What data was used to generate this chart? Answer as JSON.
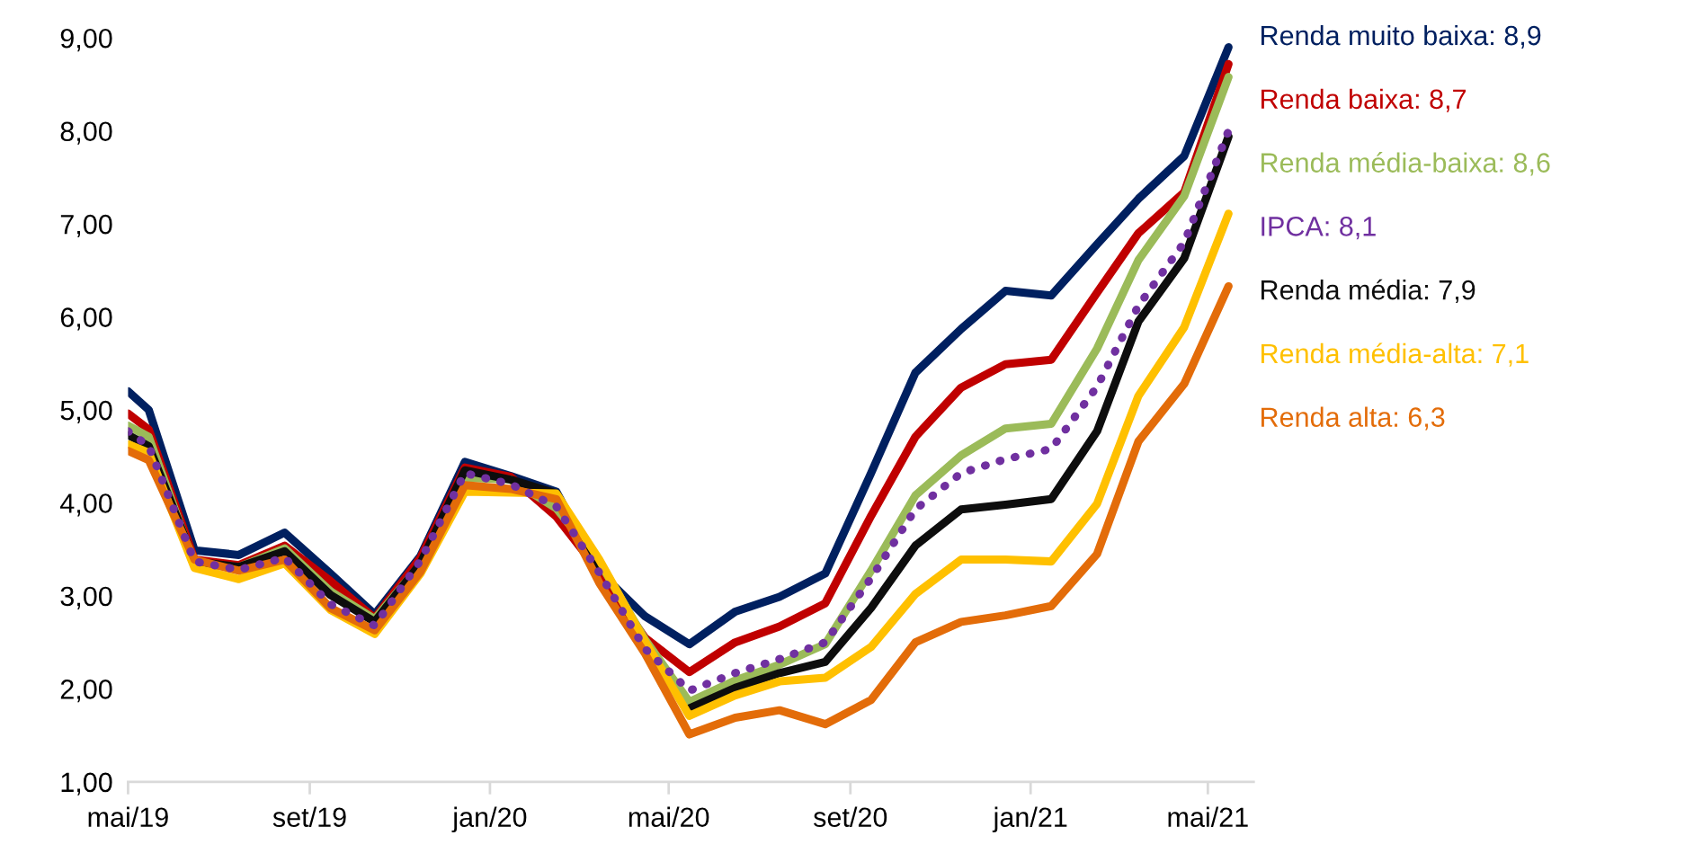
{
  "chart_data": {
    "type": "line",
    "x": [
      "2019-05-01",
      "2019-05-15",
      "2019-06-15",
      "2019-07-15",
      "2019-08-15",
      "2019-09-15",
      "2019-10-15",
      "2019-11-15",
      "2019-12-15",
      "2020-01-15",
      "2020-02-15",
      "2020-03-15",
      "2020-04-15",
      "2020-05-15",
      "2020-06-15",
      "2020-07-15",
      "2020-08-15",
      "2020-09-15",
      "2020-10-15",
      "2020-11-15",
      "2020-12-15",
      "2021-01-15",
      "2021-02-15",
      "2021-03-15",
      "2021-04-15",
      "2021-05-15"
    ],
    "series": [
      {
        "name": "Renda muito baixa: 8,9",
        "color": "#002060",
        "values": [
          5.2,
          5.0,
          3.49,
          3.44,
          3.68,
          3.24,
          2.8,
          3.43,
          4.44,
          4.29,
          4.12,
          3.26,
          2.78,
          2.48,
          2.83,
          2.99,
          3.24,
          4.32,
          5.4,
          5.87,
          6.28,
          6.23,
          6.78,
          7.27,
          7.73,
          8.9
        ]
      },
      {
        "name": "Renda baixa: 8,7",
        "color": "#c00000",
        "values": [
          4.96,
          4.79,
          3.39,
          3.33,
          3.54,
          3.16,
          2.76,
          3.41,
          4.38,
          4.28,
          3.85,
          3.26,
          2.55,
          2.18,
          2.5,
          2.67,
          2.92,
          3.86,
          4.71,
          5.24,
          5.49,
          5.54,
          6.26,
          6.9,
          7.34,
          8.72
        ]
      },
      {
        "name": "Renda média-baixa: 8,6",
        "color": "#9bbb59",
        "values": [
          4.83,
          4.71,
          3.34,
          3.31,
          3.51,
          3.05,
          2.75,
          3.34,
          4.27,
          4.25,
          3.94,
          3.37,
          2.53,
          1.86,
          2.09,
          2.26,
          2.48,
          3.27,
          4.08,
          4.51,
          4.8,
          4.85,
          5.66,
          6.61,
          7.3,
          8.58
        ]
      },
      {
        "name": "IPCA: 8,1",
        "color": "#7030a0",
        "line_style": "dotted",
        "values": [
          4.77,
          4.61,
          3.37,
          3.28,
          3.41,
          2.91,
          2.68,
          3.38,
          4.32,
          4.2,
          3.96,
          3.25,
          2.43,
          1.98,
          2.17,
          2.32,
          2.5,
          3.19,
          3.93,
          4.32,
          4.47,
          4.58,
          5.25,
          6.12,
          6.8,
          8.0
        ]
      },
      {
        "name": "Renda média: 7,9",
        "color": "#0d0d0d",
        "values": [
          4.73,
          4.61,
          3.37,
          3.31,
          3.48,
          3.01,
          2.72,
          3.35,
          4.35,
          4.25,
          4.1,
          3.26,
          null,
          1.79,
          2.01,
          2.17,
          2.29,
          2.87,
          3.54,
          3.93,
          3.98,
          4.04,
          4.77,
          5.95,
          6.63,
          7.94
        ]
      },
      {
        "name": "Renda média-alta: 7,1",
        "color": "#ffc000",
        "values": [
          4.63,
          4.54,
          3.3,
          3.18,
          3.35,
          2.85,
          2.59,
          3.24,
          4.12,
          4.11,
          4.1,
          3.39,
          2.51,
          1.71,
          1.93,
          2.08,
          2.12,
          2.45,
          3.02,
          3.39,
          3.39,
          3.37,
          3.99,
          5.15,
          5.89,
          7.11
        ]
      },
      {
        "name": "Renda alta: 6,3",
        "color": "#e36c09",
        "values": [
          4.56,
          4.46,
          3.39,
          3.27,
          3.39,
          2.87,
          2.63,
          3.26,
          4.19,
          4.15,
          4.04,
          3.14,
          2.38,
          1.51,
          1.69,
          1.77,
          1.62,
          1.88,
          2.5,
          2.72,
          2.79,
          2.89,
          3.45,
          4.66,
          5.28,
          6.33
        ]
      }
    ],
    "xlim": [
      "2019-05-01",
      "2021-06-01"
    ],
    "xticks": [
      {
        "value": "2019-05-01",
        "label": "mai/19"
      },
      {
        "value": "2019-09-01",
        "label": "set/19"
      },
      {
        "value": "2020-01-01",
        "label": "jan/20"
      },
      {
        "value": "2020-05-01",
        "label": "mai/20"
      },
      {
        "value": "2020-09-01",
        "label": "set/20"
      },
      {
        "value": "2021-01-01",
        "label": "jan/21"
      },
      {
        "value": "2021-05-01",
        "label": "mai/21"
      }
    ],
    "ylim": [
      1,
      9
    ],
    "yticks": [
      {
        "value": 1,
        "label": "1,00"
      },
      {
        "value": 2,
        "label": "2,00"
      },
      {
        "value": 3,
        "label": "3,00"
      },
      {
        "value": 4,
        "label": "4,00"
      },
      {
        "value": 5,
        "label": "5,00"
      },
      {
        "value": 6,
        "label": "6,00"
      },
      {
        "value": 7,
        "label": "7,00"
      },
      {
        "value": 8,
        "label": "8,00"
      },
      {
        "value": 9,
        "label": "9,00"
      }
    ],
    "grid": false,
    "legend": false,
    "line_style": "solid"
  }
}
